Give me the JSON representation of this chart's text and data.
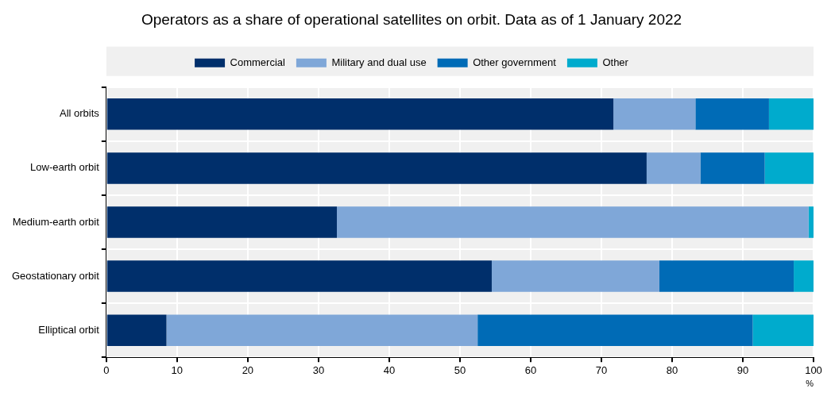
{
  "chart_data": {
    "type": "bar",
    "orientation": "horizontal",
    "stacked": true,
    "title": "Operators as a share of operational satellites on orbit. Data as of 1 January 2022",
    "xlabel": "%",
    "categories": [
      "All orbits",
      "Low-earth orbit",
      "Medium-earth orbit",
      "Geostationary orbit",
      "Elliptical orbit"
    ],
    "series": [
      {
        "name": "Commercial",
        "color": "#002f6b",
        "values": [
          71.7,
          76.4,
          32.6,
          54.5,
          8.5
        ]
      },
      {
        "name": "Military and dual use",
        "color": "#7fa7d8",
        "values": [
          11.6,
          7.6,
          66.7,
          23.7,
          44.0
        ]
      },
      {
        "name": "Other government",
        "color": "#006bb6",
        "values": [
          10.4,
          9.1,
          0,
          19.0,
          38.9
        ]
      },
      {
        "name": "Other",
        "color": "#00abcd",
        "values": [
          6.3,
          6.9,
          0.7,
          2.8,
          8.6
        ]
      }
    ],
    "xlim": [
      0,
      100
    ],
    "xticks": [
      0,
      10,
      20,
      30,
      40,
      50,
      60,
      70,
      80,
      90,
      100
    ],
    "grid": true,
    "legend": "top"
  }
}
